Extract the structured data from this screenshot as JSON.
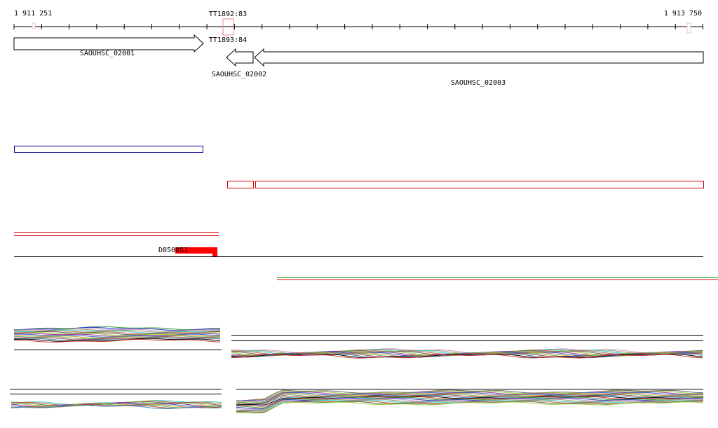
{
  "ruler": {
    "start_label": "1 911 251",
    "end_label": "1 913 750"
  },
  "markers": [
    {
      "label": "TT1892:83"
    },
    {
      "label": "TT1893:84"
    }
  ],
  "genes": [
    {
      "label": "SAOUHSC_02001"
    },
    {
      "label": "SAOUHSC_02002"
    },
    {
      "label": "SAOUHSC_02003"
    }
  ],
  "features": [
    {
      "label": "D850051"
    }
  ]
}
